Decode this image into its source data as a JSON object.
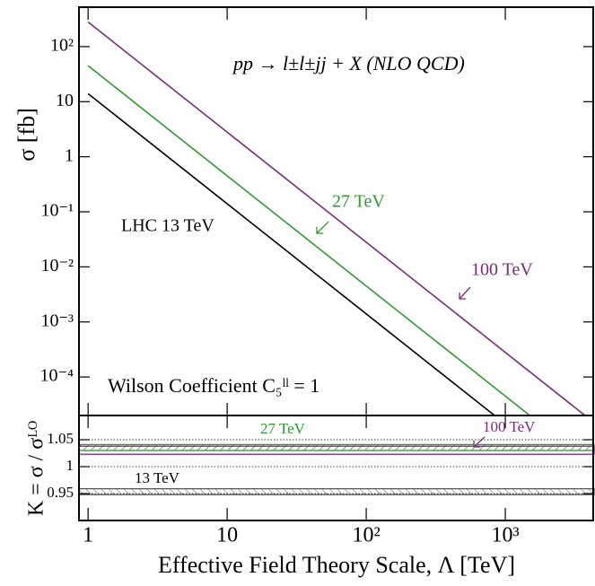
{
  "chart_data": [
    {
      "type": "line",
      "title": "pp  → l±l±jj + X  (NLO QCD)",
      "annotations": [
        "Wilson Coefficient C₅ˡˡ = 1"
      ],
      "ylabel": "σ [fb]",
      "xscale": "log",
      "yscale": "log",
      "xlim": [
        0.86,
        4350
      ],
      "ylim": [
        2e-05,
        520
      ],
      "xticks": [
        1,
        10,
        {
          "value": 100,
          "label": "10²"
        },
        {
          "value": 1000,
          "label": "10³"
        }
      ],
      "yticks": [
        {
          "value": 100,
          "label": "10²"
        },
        10,
        1,
        {
          "value": 0.1,
          "label": "10⁻¹"
        },
        {
          "value": 0.01,
          "label": "10⁻²"
        },
        {
          "value": 0.001,
          "label": "10⁻³"
        },
        {
          "value": 0.0001,
          "label": "10⁻⁴"
        }
      ],
      "series": [
        {
          "name": "LHC 13 TeV",
          "color": "#000000",
          "x": [
            1,
            1000
          ],
          "values": [
            14,
            1.4e-05
          ]
        },
        {
          "name": "27 TeV",
          "color": "#2e9b2e",
          "x": [
            1,
            3000
          ],
          "values": [
            45,
            5e-06
          ]
        },
        {
          "name": "100 TeV",
          "color": "#7b2a7b",
          "x": [
            1,
            4000
          ],
          "values": [
            280,
            1.75e-05
          ]
        }
      ]
    },
    {
      "type": "band",
      "ylabel": "K = σ / σᴸᴼ",
      "xlabel": "Effective Field Theory Scale, Λ [TeV]",
      "xscale": "log",
      "xlim": [
        0.86,
        4350
      ],
      "ylim": [
        0.9,
        1.095
      ],
      "xticks": [
        1,
        10,
        {
          "value": 100,
          "label": "10²"
        },
        {
          "value": 1000,
          "label": "10³"
        }
      ],
      "yticks": [
        1.05,
        1,
        0.95
      ],
      "grid": "dotted",
      "series": [
        {
          "name": "13 TeV",
          "color": "#555555",
          "values": [
            0.948,
            0.959
          ]
        },
        {
          "name": "27 TeV",
          "color": "#2e9b2e",
          "values": [
            1.03,
            1.041
          ]
        },
        {
          "name": "100 TeV",
          "color": "#7b2a7b",
          "values": [
            1.023,
            1.038
          ]
        }
      ]
    }
  ]
}
